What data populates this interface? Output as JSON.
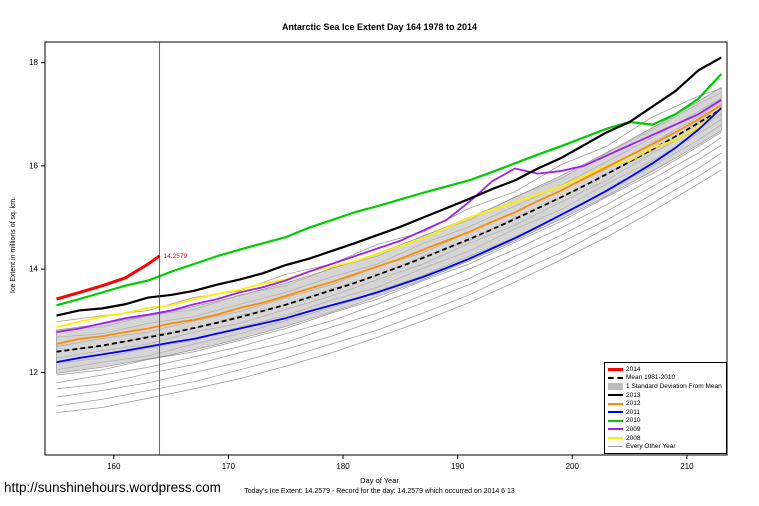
{
  "page": {
    "url_text": "http://sunshinehours.wordpress.com",
    "caption": "Today's Ice Extent: 14.2579 - Record for the day: 14.2579 which occurred on 2014 6 13"
  },
  "chart_data": {
    "type": "line",
    "title": "Antarctic Sea Ice Extent Day 164 1978 to 2014",
    "xlabel": "Day of Year",
    "ylabel": "Ice Extent in millions of sq. km.",
    "xlim": [
      154,
      213.5
    ],
    "ylim": [
      10.4,
      18.4
    ],
    "x_ticks": [
      160,
      170,
      180,
      190,
      200,
      210
    ],
    "y_ticks": [
      12,
      14,
      16,
      18
    ],
    "grid": false,
    "legend_position": "bottom-right",
    "marker_day": 164,
    "marker_annotation": "14.2579",
    "annotation_color": "#ff0000",
    "x_main": [
      155,
      157,
      159,
      161,
      163,
      165,
      167,
      169,
      171,
      173,
      175,
      177,
      179,
      181,
      183,
      185,
      187,
      189,
      191,
      193,
      195,
      197,
      199,
      201,
      203,
      205,
      207,
      209,
      211,
      213
    ],
    "mean": {
      "name": "Mean 1981-2010",
      "color": "#000000",
      "width": 1.8,
      "dash": "5,3",
      "values": [
        12.4,
        12.46,
        12.52,
        12.6,
        12.68,
        12.76,
        12.86,
        12.96,
        13.07,
        13.19,
        13.31,
        13.45,
        13.59,
        13.73,
        13.89,
        14.05,
        14.22,
        14.4,
        14.58,
        14.77,
        14.97,
        15.18,
        15.39,
        15.61,
        15.84,
        16.08,
        16.32,
        16.57,
        16.83,
        17.1
      ]
    },
    "band": {
      "label": "1 Standard Deviation From Mean",
      "half_width": 0.42,
      "color": "#bebebe",
      "opacity": 0.65,
      "edge_color": "#8a8a8a"
    },
    "series": [
      {
        "name": "2008",
        "color": "#ffee00",
        "width": 1.8,
        "values": [
          12.88,
          12.98,
          13.08,
          13.15,
          13.25,
          13.3,
          13.42,
          13.52,
          13.6,
          13.72,
          13.8,
          13.95,
          14.05,
          14.15,
          14.3,
          14.45,
          14.6,
          14.8,
          15.0,
          15.15,
          15.3,
          15.45,
          15.6,
          15.8,
          16.0,
          16.1,
          16.35,
          16.5,
          16.75,
          17.1
        ]
      },
      {
        "name": "2012",
        "color": "#ff8c00",
        "width": 1.8,
        "values": [
          12.55,
          12.65,
          12.7,
          12.78,
          12.85,
          12.95,
          13.02,
          13.12,
          13.25,
          13.35,
          13.48,
          13.62,
          13.75,
          13.9,
          14.05,
          14.2,
          14.38,
          14.55,
          14.72,
          14.92,
          15.1,
          15.32,
          15.52,
          15.75,
          15.98,
          16.2,
          16.42,
          16.65,
          16.9,
          17.18
        ]
      },
      {
        "name": "2011",
        "color": "#0000ff",
        "width": 1.8,
        "values": [
          12.2,
          12.28,
          12.35,
          12.42,
          12.5,
          12.58,
          12.65,
          12.75,
          12.85,
          12.95,
          13.05,
          13.18,
          13.3,
          13.42,
          13.55,
          13.7,
          13.85,
          14.02,
          14.2,
          14.4,
          14.6,
          14.82,
          15.05,
          15.28,
          15.52,
          15.78,
          16.05,
          16.35,
          16.7,
          17.12
        ]
      },
      {
        "name": "2009",
        "color": "#a020f0",
        "width": 1.8,
        "values": [
          12.78,
          12.85,
          12.95,
          13.05,
          13.12,
          13.2,
          13.32,
          13.42,
          13.55,
          13.65,
          13.78,
          13.95,
          14.1,
          14.25,
          14.4,
          14.55,
          14.75,
          14.95,
          15.3,
          15.7,
          15.95,
          15.85,
          15.9,
          16.0,
          16.2,
          16.4,
          16.6,
          16.8,
          17.0,
          17.28
        ]
      },
      {
        "name": "2010",
        "color": "#00cc00",
        "width": 2.2,
        "values": [
          13.3,
          13.42,
          13.55,
          13.68,
          13.78,
          13.95,
          14.1,
          14.25,
          14.38,
          14.5,
          14.62,
          14.8,
          14.95,
          15.1,
          15.22,
          15.35,
          15.48,
          15.6,
          15.72,
          15.88,
          16.05,
          16.22,
          16.38,
          16.55,
          16.72,
          16.85,
          16.8,
          17.0,
          17.3,
          17.78
        ]
      },
      {
        "name": "2013",
        "color": "#000000",
        "width": 2.2,
        "values": [
          13.1,
          13.2,
          13.24,
          13.32,
          13.45,
          13.5,
          13.58,
          13.7,
          13.8,
          13.92,
          14.08,
          14.2,
          14.35,
          14.5,
          14.66,
          14.82,
          15.0,
          15.18,
          15.36,
          15.55,
          15.72,
          15.95,
          16.15,
          16.4,
          16.65,
          16.85,
          17.15,
          17.45,
          17.85,
          18.1
        ]
      },
      {
        "name": "2014",
        "color": "#ff0000",
        "width": 3,
        "x": [
          155,
          157,
          159,
          161,
          163,
          164
        ],
        "values": [
          13.42,
          13.55,
          13.68,
          13.83,
          14.1,
          14.2579
        ]
      }
    ],
    "background_series": {
      "name": "Every Other Year",
      "color": "#999999",
      "width": 0.75,
      "x": [
        155,
        159,
        163,
        167,
        171,
        175,
        179,
        183,
        187,
        191,
        195,
        199,
        203,
        207,
        211,
        213
      ],
      "lines": [
        [
          12.98,
          13.1,
          13.2,
          13.45,
          13.58,
          13.9,
          14.1,
          14.48,
          14.72,
          15.18,
          15.5,
          16.02,
          16.38,
          16.95,
          17.35,
          17.5
        ],
        [
          12.82,
          12.88,
          13.1,
          13.22,
          13.5,
          13.68,
          14.02,
          14.25,
          14.65,
          14.95,
          15.4,
          15.75,
          16.25,
          16.7,
          17.2,
          17.42
        ],
        [
          12.68,
          12.75,
          12.95,
          13.08,
          13.32,
          13.55,
          13.85,
          14.1,
          14.5,
          14.82,
          15.22,
          15.62,
          16.08,
          16.55,
          17.05,
          17.32
        ],
        [
          12.5,
          12.66,
          12.78,
          13.0,
          13.18,
          13.45,
          13.7,
          14.05,
          14.32,
          14.72,
          15.1,
          15.52,
          15.95,
          16.45,
          16.95,
          17.25
        ],
        [
          12.42,
          12.5,
          12.7,
          12.85,
          13.1,
          13.3,
          13.62,
          13.88,
          14.25,
          14.55,
          15.0,
          15.38,
          15.85,
          16.3,
          16.85,
          17.08
        ],
        [
          12.28,
          12.42,
          12.55,
          12.78,
          12.95,
          13.22,
          13.48,
          13.8,
          14.1,
          14.5,
          14.85,
          15.3,
          15.72,
          16.25,
          16.72,
          17.0
        ],
        [
          12.18,
          12.28,
          12.48,
          12.62,
          12.88,
          13.1,
          13.4,
          13.65,
          14.02,
          14.35,
          14.78,
          15.15,
          15.65,
          16.1,
          16.62,
          16.9
        ],
        [
          12.05,
          12.2,
          12.32,
          12.55,
          12.75,
          13.0,
          13.25,
          13.58,
          13.88,
          14.25,
          14.62,
          15.05,
          15.5,
          16.0,
          16.5,
          16.8
        ],
        [
          11.95,
          12.05,
          12.25,
          12.4,
          12.62,
          12.85,
          13.15,
          13.42,
          13.78,
          14.1,
          14.52,
          14.92,
          15.4,
          15.85,
          16.38,
          16.65
        ],
        [
          11.8,
          11.95,
          12.1,
          12.3,
          12.5,
          12.75,
          13.0,
          13.32,
          13.65,
          14.0,
          14.38,
          14.8,
          15.25,
          15.75,
          16.25,
          16.55
        ],
        [
          11.68,
          11.78,
          11.98,
          12.15,
          12.38,
          12.58,
          12.88,
          13.15,
          13.5,
          13.82,
          14.25,
          14.65,
          15.12,
          15.6,
          16.12,
          16.4
        ],
        [
          11.52,
          11.65,
          11.8,
          12.0,
          12.2,
          12.45,
          12.7,
          13.02,
          13.35,
          13.7,
          14.08,
          14.52,
          14.95,
          15.45,
          15.95,
          16.25
        ],
        [
          11.35,
          11.48,
          11.65,
          11.82,
          12.05,
          12.28,
          12.55,
          12.82,
          13.15,
          13.5,
          13.92,
          14.32,
          14.8,
          15.28,
          15.8,
          16.08
        ],
        [
          11.22,
          11.32,
          11.5,
          11.68,
          11.88,
          12.12,
          12.38,
          12.68,
          13.0,
          13.35,
          13.75,
          14.18,
          14.62,
          15.12,
          15.65,
          15.92
        ]
      ]
    },
    "legend": [
      {
        "label": "2014",
        "type": "line",
        "color": "#ff0000",
        "width": 3,
        "dash": false
      },
      {
        "label": "Mean 1981-2010",
        "type": "line",
        "color": "#000000",
        "width": 2,
        "dash": true
      },
      {
        "label": "1 Standard Deviation From Mean",
        "type": "band",
        "color": "#bebebe"
      },
      {
        "label": "2013",
        "type": "line",
        "color": "#000000",
        "width": 2,
        "dash": false
      },
      {
        "label": "2012",
        "type": "line",
        "color": "#ff8c00",
        "width": 2,
        "dash": false
      },
      {
        "label": "2011",
        "type": "line",
        "color": "#0000ff",
        "width": 2,
        "dash": false
      },
      {
        "label": "2010",
        "type": "line",
        "color": "#00cc00",
        "width": 2,
        "dash": false
      },
      {
        "label": "2009",
        "type": "line",
        "color": "#a020f0",
        "width": 2,
        "dash": false
      },
      {
        "label": "2008",
        "type": "line",
        "color": "#ffee00",
        "width": 2,
        "dash": false
      },
      {
        "label": "Every Other Year",
        "type": "line",
        "color": "#999999",
        "width": 1,
        "dash": false
      }
    ]
  }
}
